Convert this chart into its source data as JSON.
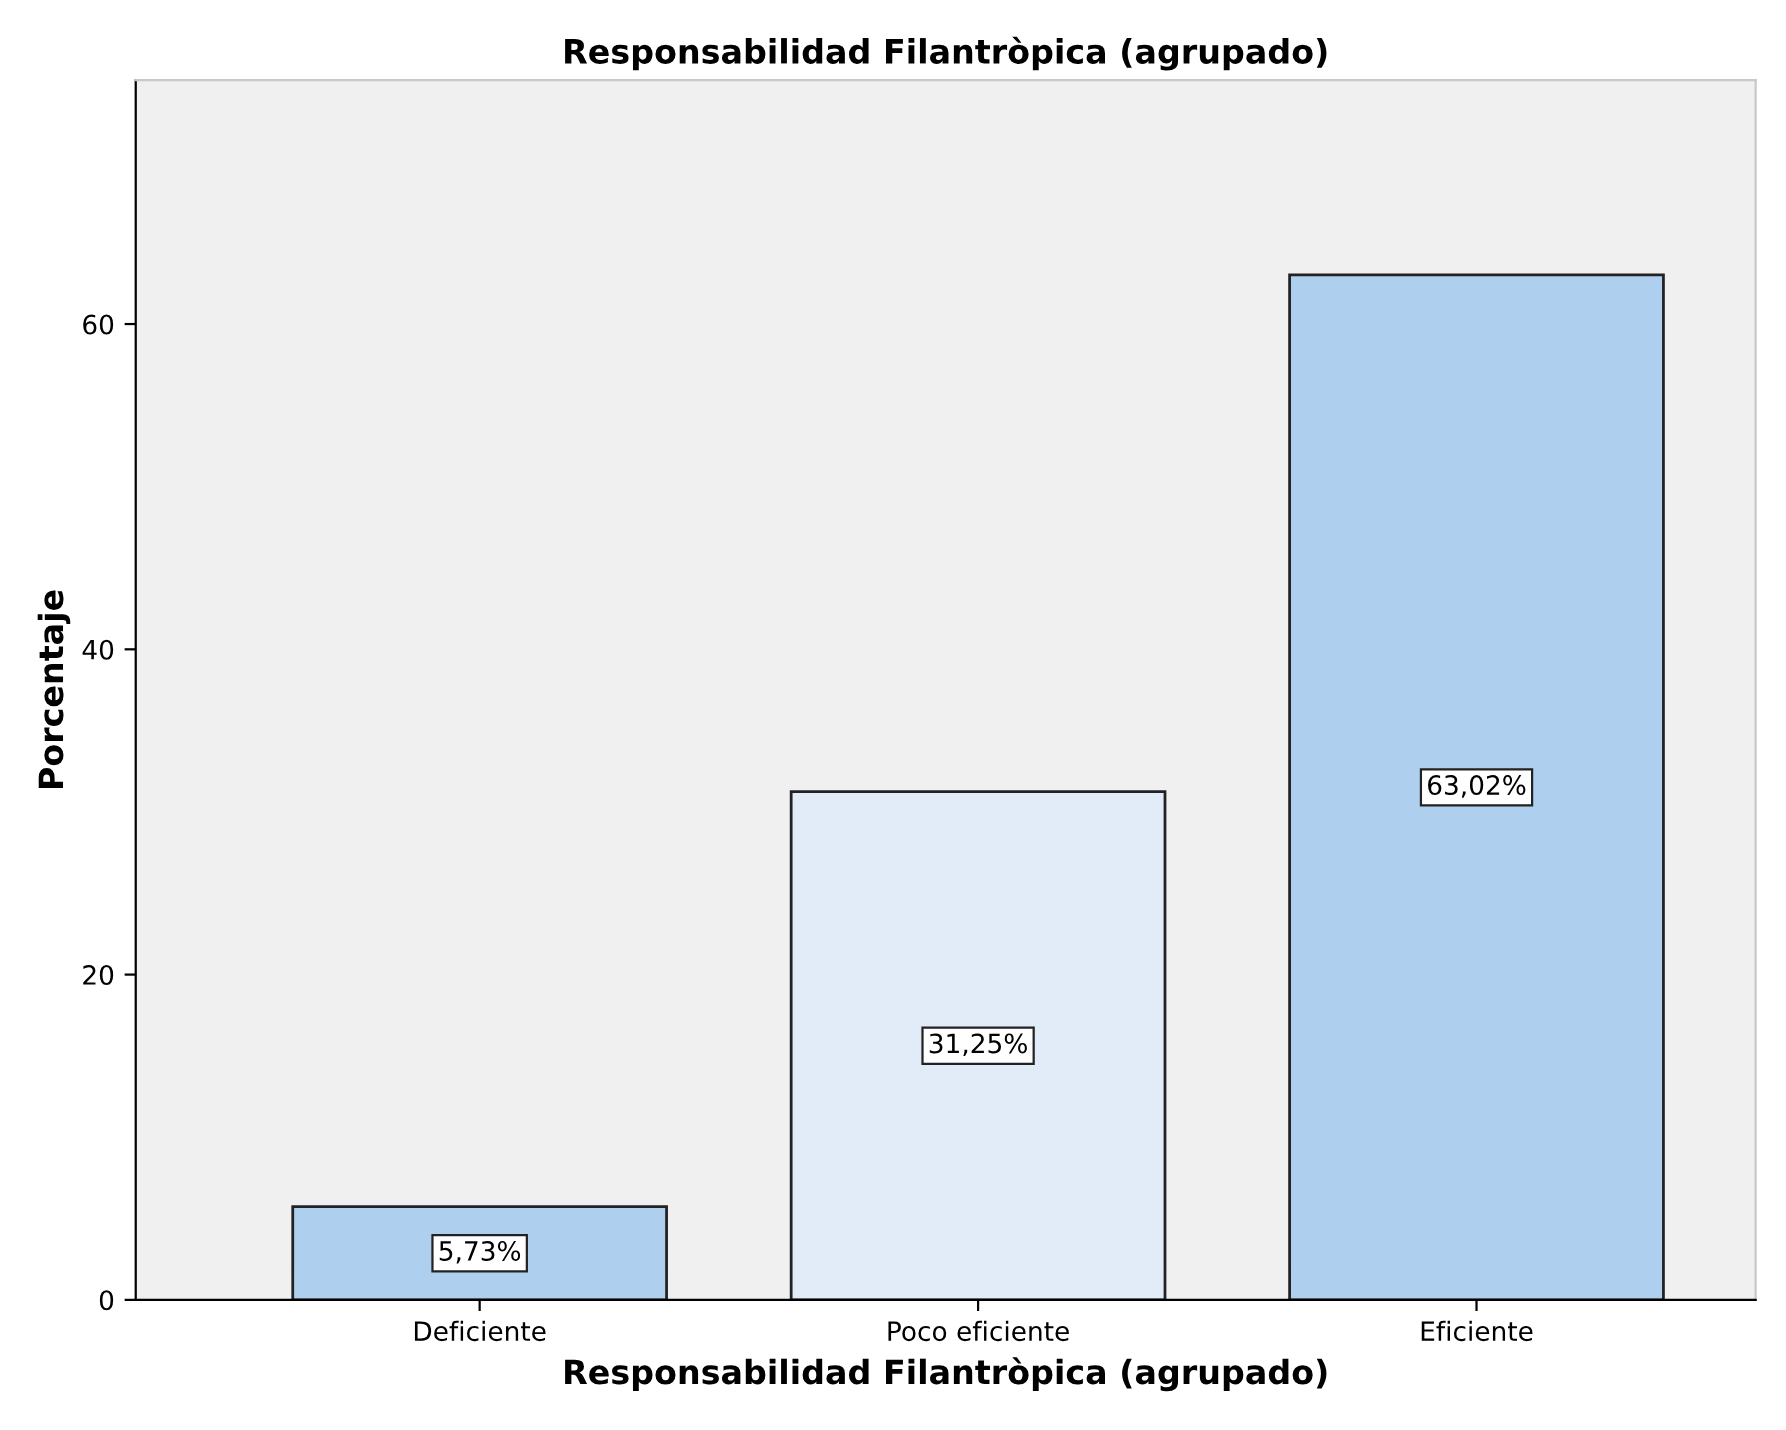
{
  "chart_data": {
    "type": "bar",
    "title": "Responsabilidad Filantròpica (agrupado)",
    "xlabel": "Responsabilidad Filantròpica (agrupado)",
    "ylabel": "Porcentaje",
    "categories": [
      "Deficiente",
      "Poco eficiente",
      "Eficiente"
    ],
    "values": [
      5.73,
      31.25,
      63.02
    ],
    "colors": [
      "#aed0ee",
      "#e1ecf8",
      "#aed0ee"
    ],
    "value_labels": [
      "5,73%",
      "31,25%",
      "63,02%"
    ],
    "ylim": [
      0,
      75
    ],
    "yticks": [
      0,
      20,
      40,
      60
    ],
    "grid": false,
    "legend": false
  }
}
